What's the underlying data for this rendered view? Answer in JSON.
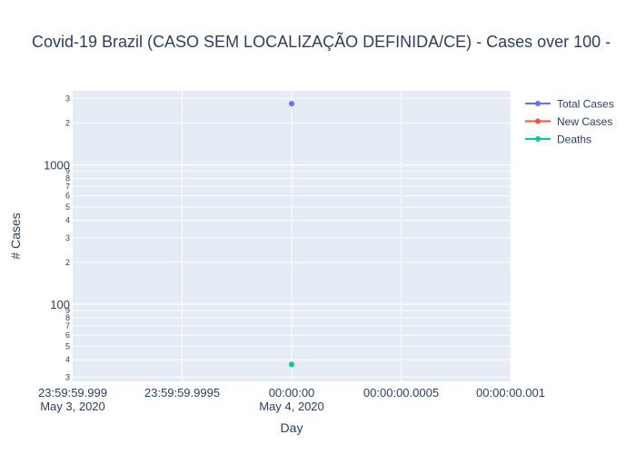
{
  "chart_data": {
    "type": "scatter",
    "title": "Covid-19 Brazil (CASO SEM LOCALIZAÇÃO DEFINIDA/CE) - Cases over 100 - ",
    "xlabel": "Day",
    "ylabel": "# Cases",
    "y_scale": "log",
    "ylim": [
      28,
      3400
    ],
    "x_ticks": [
      {
        "line1": "23:59:59.999",
        "line2": "May 3, 2020"
      },
      {
        "line1": "23:59:59.9995",
        "line2": ""
      },
      {
        "line1": "00:00:00",
        "line2": "May 4, 2020"
      },
      {
        "line1": "00:00:00.0005",
        "line2": ""
      },
      {
        "line1": "00:00:00.001",
        "line2": ""
      }
    ],
    "x_points": [
      "2020-05-04"
    ],
    "y_major_ticks": [
      {
        "value": 100,
        "label": "100"
      },
      {
        "value": 1000,
        "label": "1000"
      }
    ],
    "y_minor_ticks": [
      {
        "value": 30,
        "label": "3"
      },
      {
        "value": 40,
        "label": "4"
      },
      {
        "value": 50,
        "label": "5"
      },
      {
        "value": 60,
        "label": "6"
      },
      {
        "value": 70,
        "label": "7"
      },
      {
        "value": 80,
        "label": "8"
      },
      {
        "value": 90,
        "label": "9"
      },
      {
        "value": 200,
        "label": "2"
      },
      {
        "value": 300,
        "label": "3"
      },
      {
        "value": 400,
        "label": "4"
      },
      {
        "value": 500,
        "label": "5"
      },
      {
        "value": 600,
        "label": "6"
      },
      {
        "value": 700,
        "label": "7"
      },
      {
        "value": 800,
        "label": "8"
      },
      {
        "value": 900,
        "label": "9"
      },
      {
        "value": 2000,
        "label": "2"
      },
      {
        "value": 3000,
        "label": "3"
      }
    ],
    "series": [
      {
        "name": "Total Cases",
        "color": "#636efa",
        "values": [
          2750
        ]
      },
      {
        "name": "New Cases",
        "color": "#EF553B",
        "values": [
          null
        ]
      },
      {
        "name": "Deaths",
        "color": "#00cc96",
        "values": [
          37
        ]
      }
    ],
    "legend_position": "top-right",
    "grid": true,
    "plot_bgcolor": "#e5ecf6"
  }
}
